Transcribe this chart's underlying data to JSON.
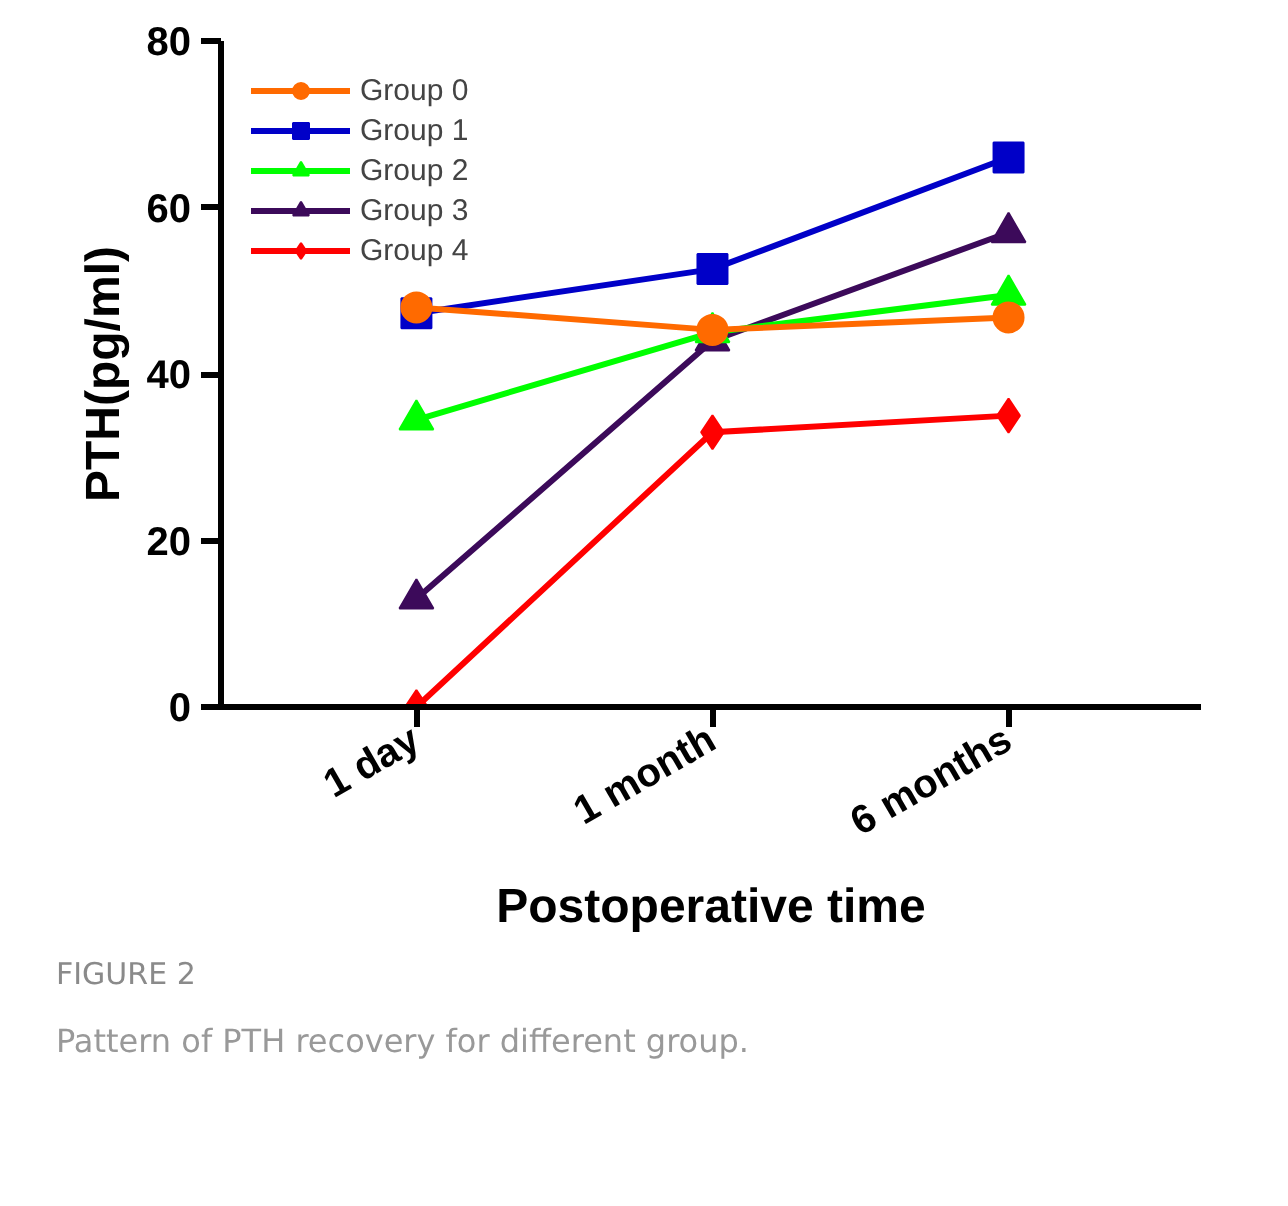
{
  "chart_data": {
    "type": "line",
    "xlabel": "Postoperative time",
    "ylabel": "PTH(pg/ml)",
    "categories": [
      "1 day",
      "1 month",
      "6 months"
    ],
    "ylim": [
      0,
      80
    ],
    "yticks": [
      0,
      20,
      40,
      60,
      80
    ],
    "grid": false,
    "legend": "top left",
    "annotations": [
      "FIGURE 2",
      "Pattern of PTH recovery for different group."
    ],
    "series": [
      {
        "name": "Group 0",
        "color": "#ff6a00",
        "marker": "circle",
        "values": [
          48,
          45.3,
          46.8
        ]
      },
      {
        "name": "Group 1",
        "color": "#0000c8",
        "marker": "square",
        "values": [
          47.3,
          52.6,
          66
        ]
      },
      {
        "name": "Group 2",
        "color": "#00ff00",
        "marker": "triangle",
        "values": [
          34.5,
          45,
          49.5
        ]
      },
      {
        "name": "Group 3",
        "color": "#3c0a5a",
        "marker": "triangle",
        "values": [
          13,
          44,
          57
        ]
      },
      {
        "name": "Group 4",
        "color": "#ff0000",
        "marker": "diamond",
        "values": [
          0,
          33,
          35
        ]
      }
    ]
  }
}
